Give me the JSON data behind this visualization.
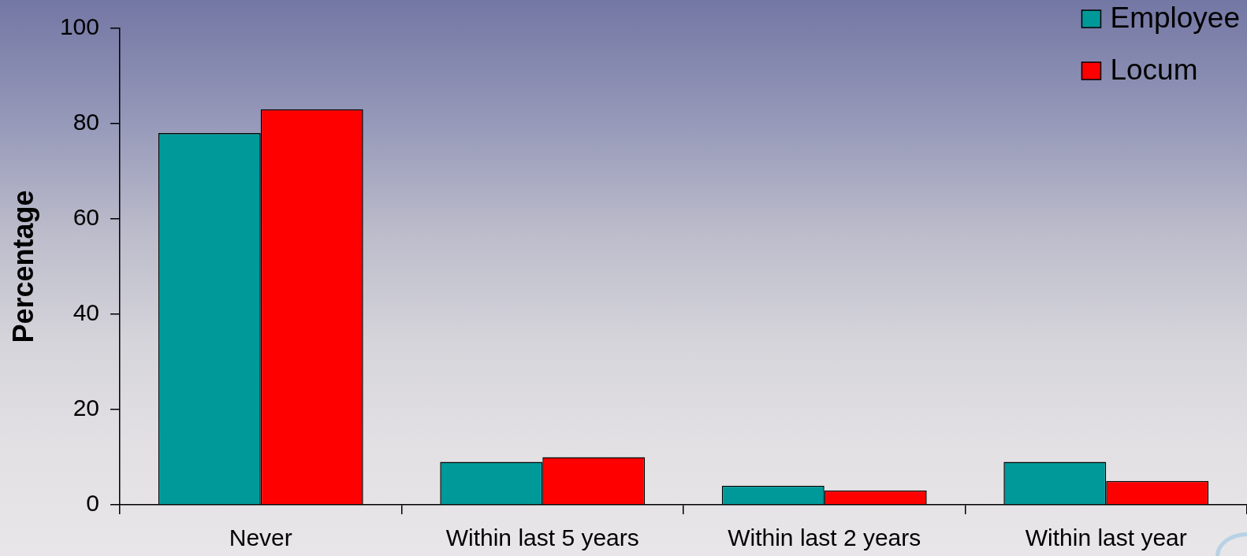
{
  "chart_data": {
    "type": "bar",
    "ylabel": "Percentage",
    "categories": [
      "Never",
      "Within last 5 years",
      "Within last 2 years",
      "Within last year"
    ],
    "series": [
      {
        "name": "Employee",
        "color": "#009999",
        "values": [
          78,
          9,
          4,
          9
        ]
      },
      {
        "name": "Locum",
        "color": "#ff0000",
        "values": [
          83,
          10,
          3,
          5
        ]
      }
    ],
    "ylim": [
      0,
      100
    ],
    "yticks": [
      0,
      20,
      40,
      60,
      80,
      100
    ],
    "legend": "top right"
  }
}
